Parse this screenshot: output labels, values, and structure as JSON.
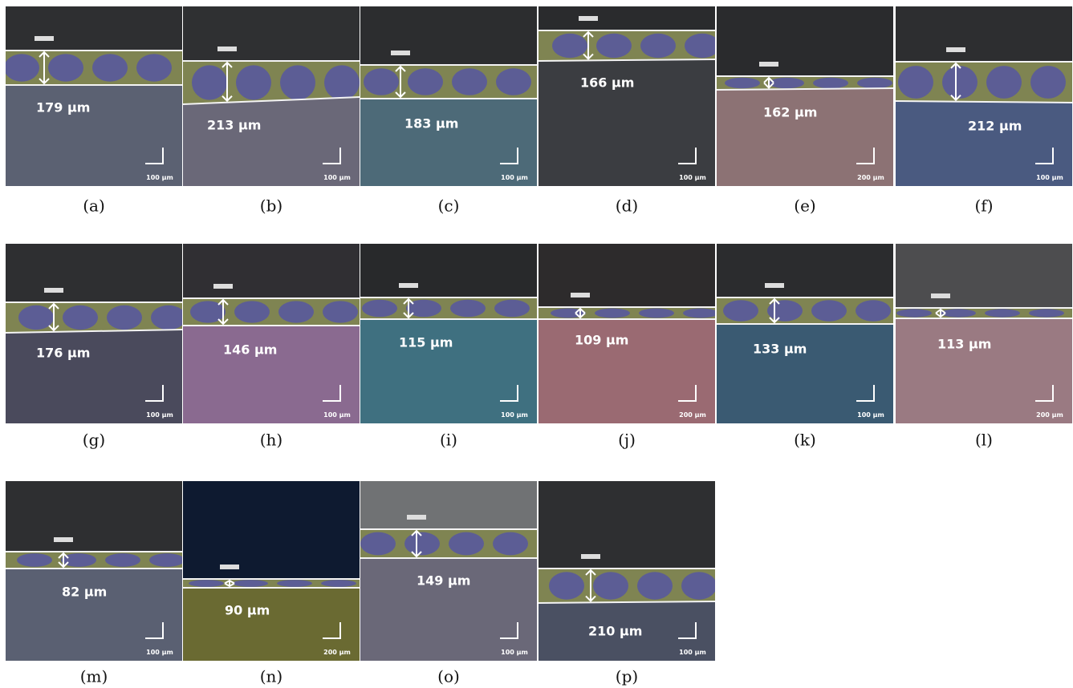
{
  "panels": [
    {
      "label": "(a)",
      "thickness": "179 μm",
      "scale": "100 μm"
    },
    {
      "label": "(b)",
      "thickness": "213 μm",
      "scale": "100 μm"
    },
    {
      "label": "(c)",
      "thickness": "183 μm",
      "scale": "100 μm"
    },
    {
      "label": "(d)",
      "thickness": "166 μm",
      "scale": "100 μm"
    },
    {
      "label": "(e)",
      "thickness": "162 μm",
      "scale": "200 μm"
    },
    {
      "label": "(f)",
      "thickness": "212 μm",
      "scale": "100 μm"
    },
    {
      "label": "(g)",
      "thickness": "176 μm",
      "scale": "100 μm"
    },
    {
      "label": "(h)",
      "thickness": "146 μm",
      "scale": "100 μm"
    },
    {
      "label": "(i)",
      "thickness": "115 μm",
      "scale": "100 μm"
    },
    {
      "label": "(j)",
      "thickness": "109 μm",
      "scale": "200 μm"
    },
    {
      "label": "(k)",
      "thickness": "133 μm",
      "scale": "100 μm"
    },
    {
      "label": "(l)",
      "thickness": "113 μm",
      "scale": "200 μm"
    },
    {
      "label": "(m)",
      "thickness": "82 μm",
      "scale": "100 μm"
    },
    {
      "label": "(n)",
      "thickness": "90 μm",
      "scale": "200 μm"
    },
    {
      "label": "(o)",
      "thickness": "149 μm",
      "scale": "100 μm"
    },
    {
      "label": "(p)",
      "thickness": "210 μm",
      "scale": "100 μm"
    }
  ]
}
